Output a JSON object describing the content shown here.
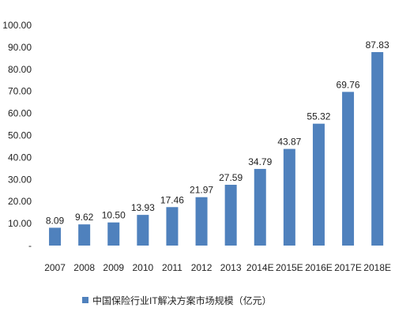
{
  "chart_data": {
    "type": "bar",
    "title": "",
    "xlabel": "",
    "ylabel": "",
    "categories": [
      "2007",
      "2008",
      "2009",
      "2010",
      "2011",
      "2012",
      "2013",
      "2014E",
      "2015E",
      "2016E",
      "2017E",
      "2018E"
    ],
    "series": [
      {
        "name": "中国保险行业IT解决方案市场规模（亿元）",
        "values": [
          8.09,
          9.62,
          10.5,
          13.93,
          17.46,
          21.97,
          27.59,
          34.79,
          43.87,
          55.32,
          69.76,
          87.83
        ],
        "data_labels": [
          "8.09",
          "9.62",
          "10.50",
          "13.93",
          "17.46",
          "21.97",
          "27.59",
          "34.79",
          "43.87",
          "55.32",
          "69.76",
          "87.83"
        ],
        "color": "#4f81bd"
      }
    ],
    "ylim": [
      0,
      100
    ],
    "y_ticks": [
      0,
      10,
      20,
      30,
      40,
      50,
      60,
      70,
      80,
      90,
      100
    ],
    "y_tick_labels": [
      "-",
      "10.00",
      "20.00",
      "30.00",
      "40.00",
      "50.00",
      "60.00",
      "70.00",
      "80.00",
      "90.00",
      "100.00"
    ],
    "grid": false,
    "legend_position": "bottom"
  }
}
